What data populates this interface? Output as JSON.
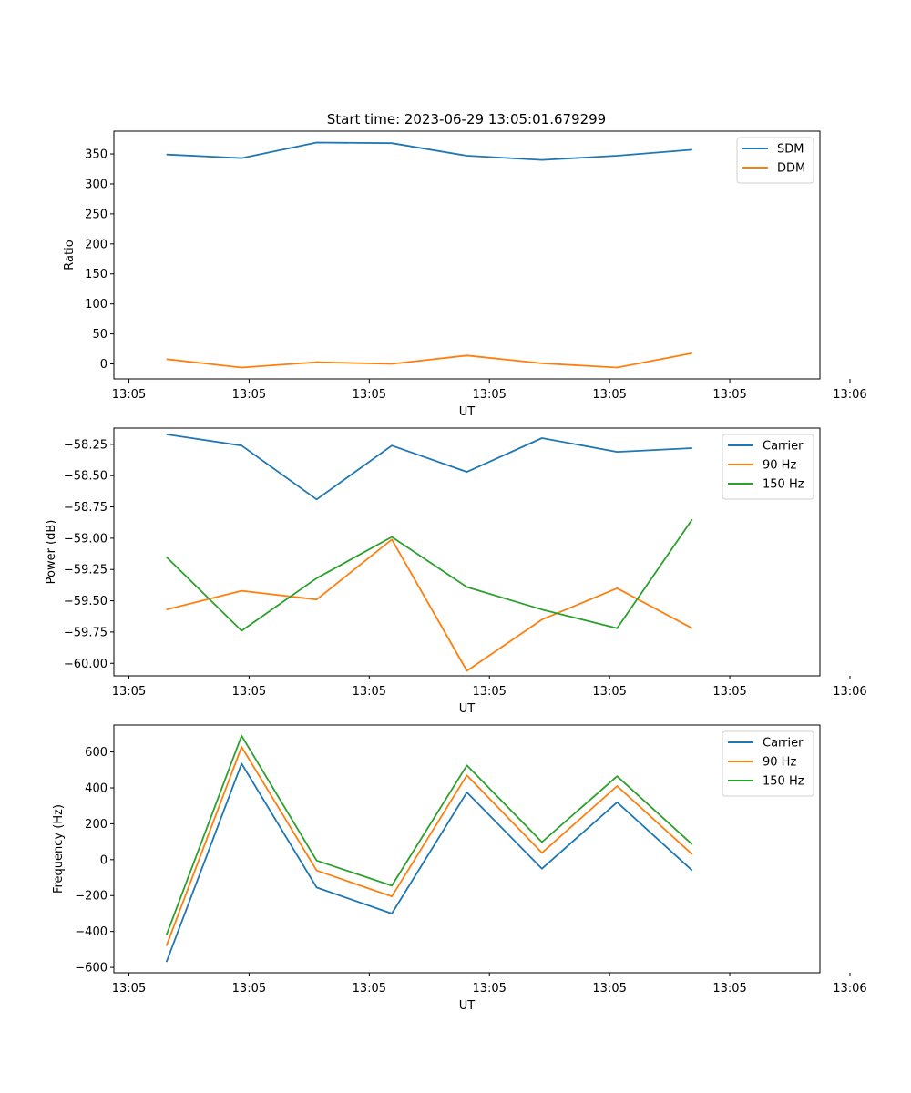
{
  "title": "Start time: 2023-06-29 13:05:01.679299",
  "chart_data": [
    {
      "type": "line",
      "ylabel": "Ratio",
      "xlabel": "UT",
      "xticklabels": [
        "13:05",
        "13:05",
        "13:05",
        "13:05",
        "13:05",
        "13:05",
        "13:06"
      ],
      "x": [
        0.5,
        1.5,
        2.5,
        3.5,
        4.5,
        5.5,
        6.5,
        7.5
      ],
      "xlim": [
        -0.2,
        9.2
      ],
      "ylim": [
        -25,
        388
      ],
      "yticks": [
        0,
        50,
        100,
        150,
        200,
        250,
        300,
        350
      ],
      "yticklabels": [
        "0",
        "50",
        "100",
        "150",
        "200",
        "250",
        "300",
        "350"
      ],
      "legend": "top-right",
      "series": [
        {
          "name": "SDM",
          "color": "#1f77b4",
          "values": [
            349,
            343,
            369,
            368,
            347,
            340,
            347,
            357
          ]
        },
        {
          "name": "DDM",
          "color": "#ff7f0e",
          "values": [
            8,
            -6,
            3,
            0,
            14,
            1,
            -6,
            18
          ]
        }
      ]
    },
    {
      "type": "line",
      "ylabel": "Power (dB)",
      "xlabel": "UT",
      "xticklabels": [
        "13:05",
        "13:05",
        "13:05",
        "13:05",
        "13:05",
        "13:05",
        "13:06"
      ],
      "x": [
        0.5,
        1.5,
        2.5,
        3.5,
        4.5,
        5.5,
        6.5,
        7.5
      ],
      "xlim": [
        -0.2,
        9.2
      ],
      "ylim": [
        -60.1,
        -58.12
      ],
      "yticks": [
        -60.0,
        -59.75,
        -59.5,
        -59.25,
        -59.0,
        -58.75,
        -58.5,
        -58.25
      ],
      "yticklabels": [
        "−60.00",
        "−59.75",
        "−59.50",
        "−59.25",
        "−59.00",
        "−58.75",
        "−58.50",
        "−58.25"
      ],
      "legend": "top-right",
      "series": [
        {
          "name": "Carrier",
          "color": "#1f77b4",
          "values": [
            -58.17,
            -58.26,
            -58.69,
            -58.26,
            -58.47,
            -58.2,
            -58.31,
            -58.28
          ]
        },
        {
          "name": "90 Hz",
          "color": "#ff7f0e",
          "values": [
            -59.57,
            -59.42,
            -59.49,
            -59.01,
            -60.06,
            -59.65,
            -59.4,
            -59.72
          ]
        },
        {
          "name": "150 Hz",
          "color": "#2ca02c",
          "values": [
            -59.15,
            -59.74,
            -59.32,
            -58.99,
            -59.39,
            -59.57,
            -59.72,
            -58.85
          ]
        }
      ]
    },
    {
      "type": "line",
      "ylabel": "Frequency (Hz)",
      "xlabel": "UT",
      "xticklabels": [
        "13:05",
        "13:05",
        "13:05",
        "13:05",
        "13:05",
        "13:05",
        "13:06"
      ],
      "x": [
        0.5,
        1.5,
        2.5,
        3.5,
        4.5,
        5.5,
        6.5,
        7.5
      ],
      "xlim": [
        -0.2,
        9.2
      ],
      "ylim": [
        -630,
        750
      ],
      "yticks": [
        -600,
        -400,
        -200,
        0,
        200,
        400,
        600
      ],
      "yticklabels": [
        "−600",
        "−400",
        "−200",
        "0",
        "200",
        "400",
        "600"
      ],
      "legend": "top-right",
      "series": [
        {
          "name": "Carrier",
          "color": "#1f77b4",
          "values": [
            -570,
            535,
            -155,
            -300,
            375,
            -50,
            320,
            -60
          ]
        },
        {
          "name": "90 Hz",
          "color": "#ff7f0e",
          "values": [
            -480,
            628,
            -60,
            -205,
            470,
            38,
            410,
            30
          ]
        },
        {
          "name": "150 Hz",
          "color": "#2ca02c",
          "values": [
            -420,
            690,
            -5,
            -145,
            525,
            98,
            465,
            85
          ]
        }
      ]
    }
  ]
}
